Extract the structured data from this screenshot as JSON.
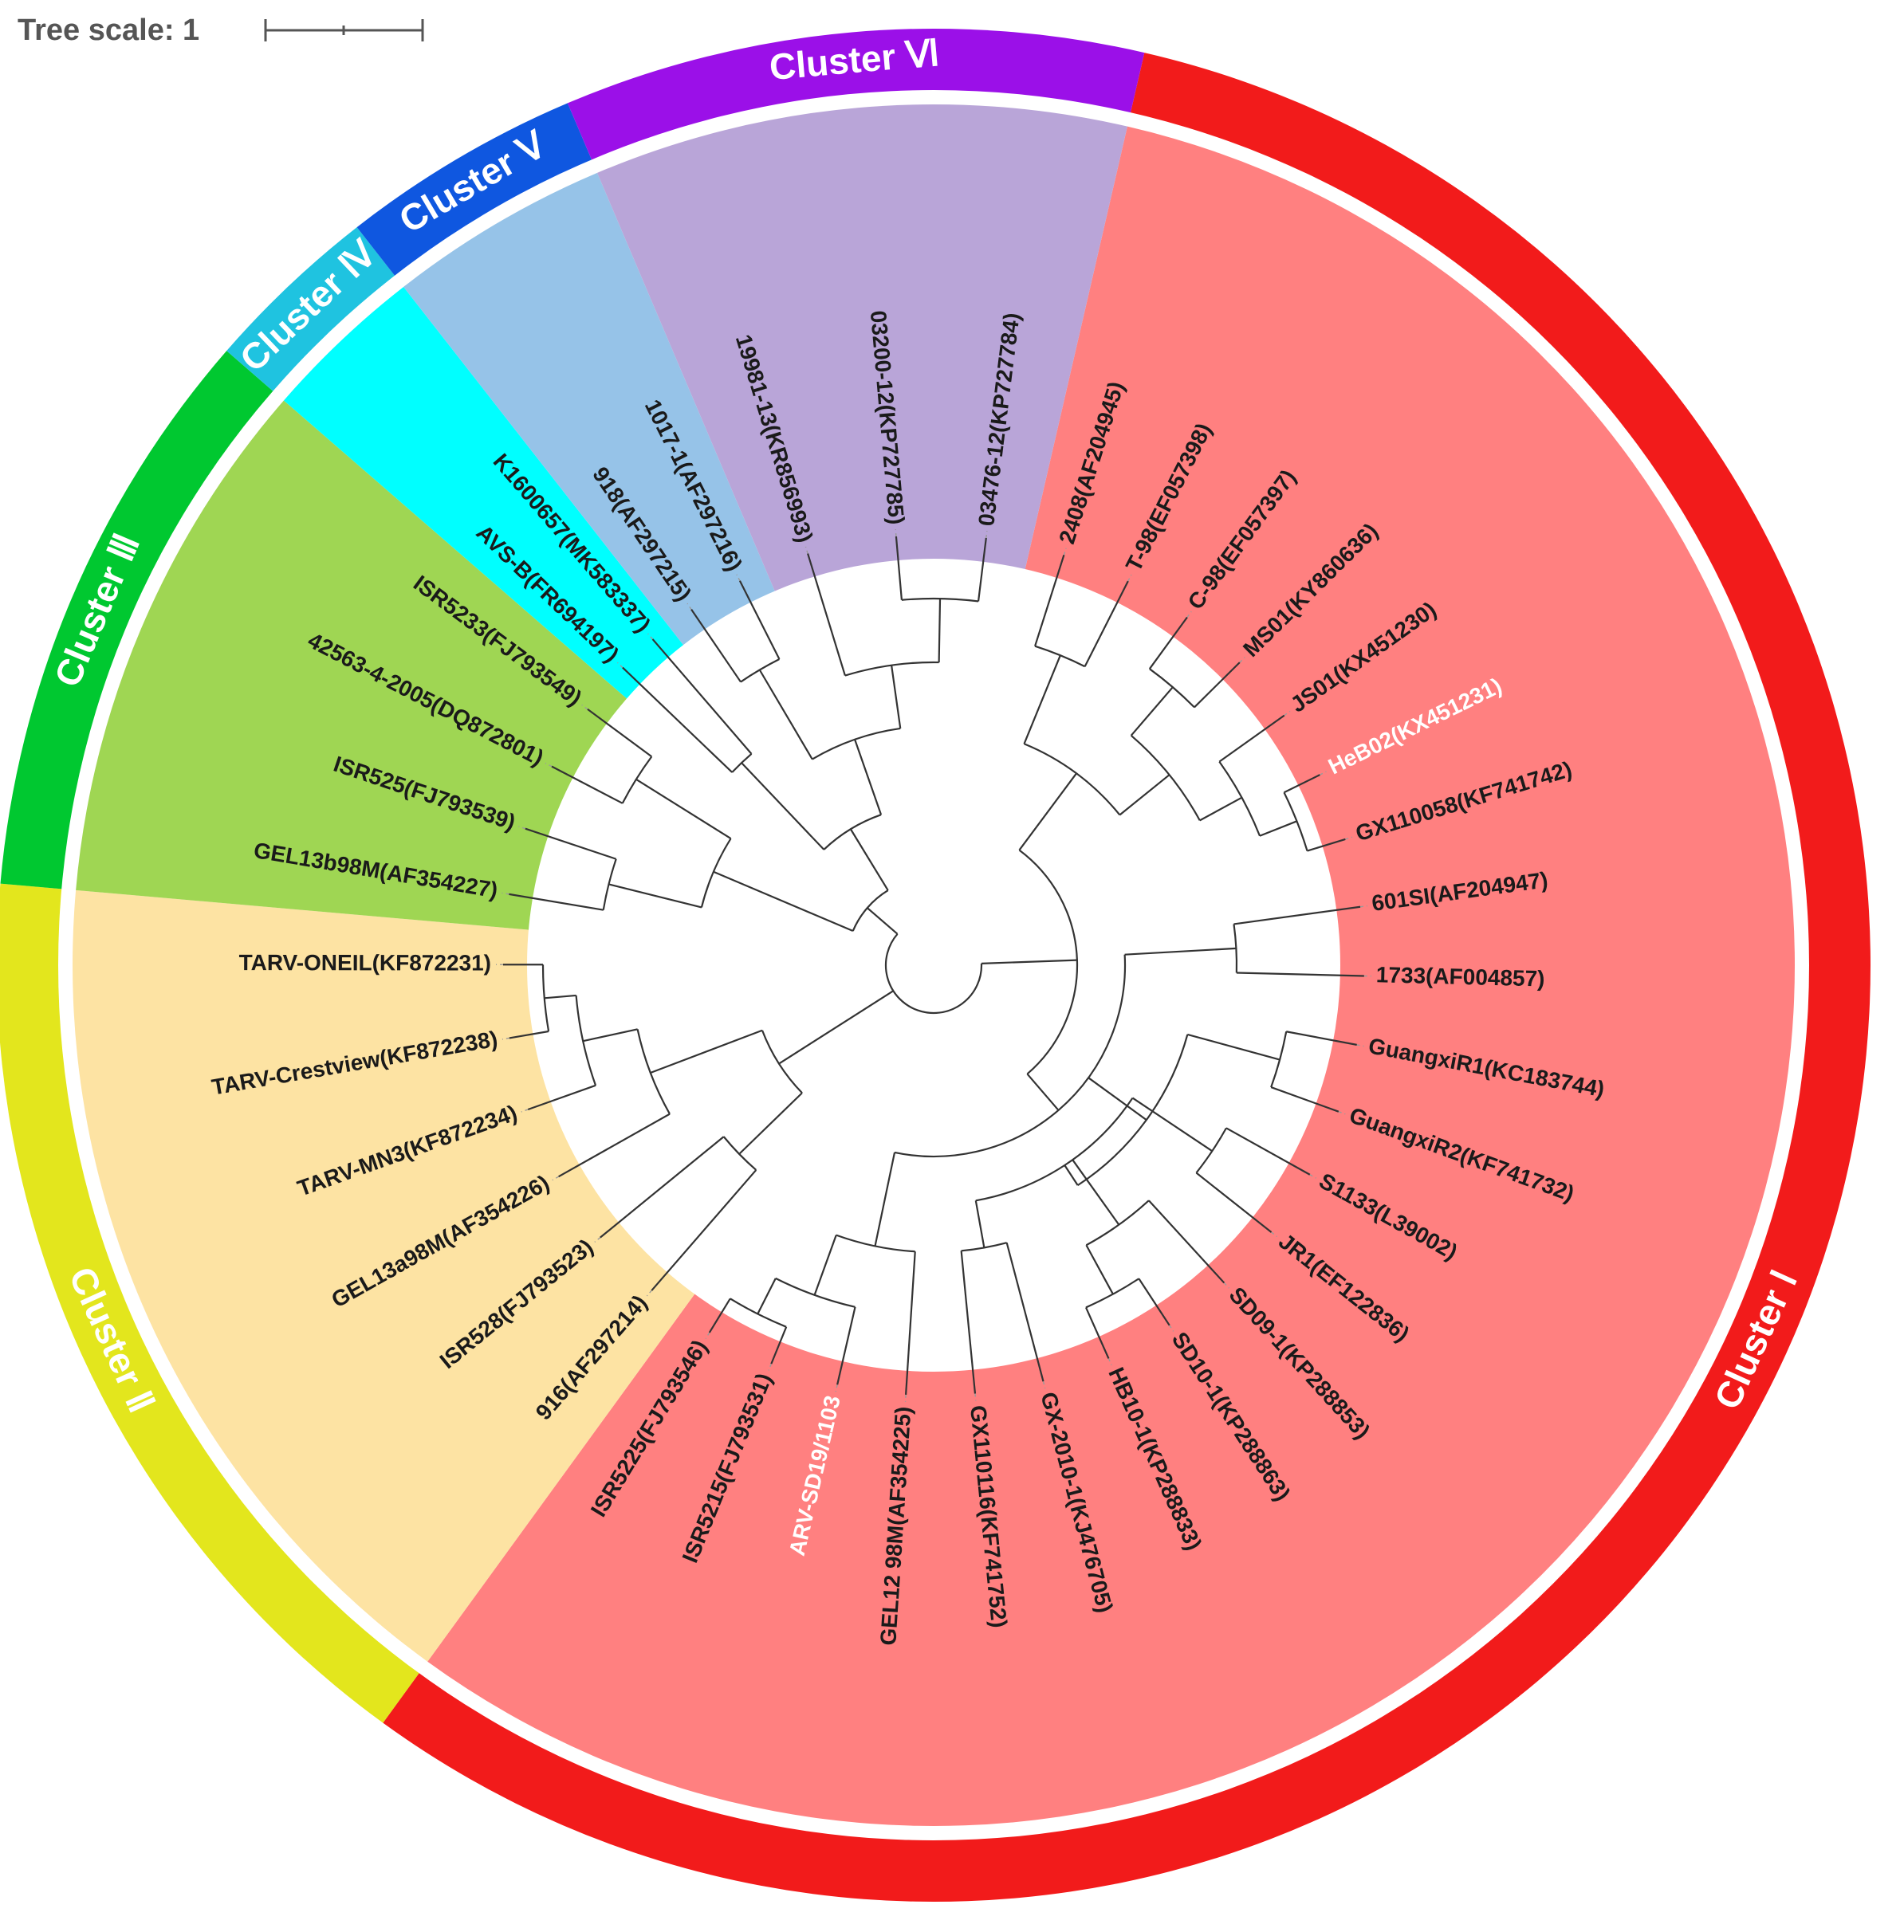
{
  "scale_bar": {
    "label": "Tree scale: 1"
  },
  "clusters": [
    {
      "id": "I",
      "label": "Cluster Ⅰ",
      "ring_color": "#f21b1b",
      "bg_color": "#ff8080",
      "start": 13,
      "end": 216
    },
    {
      "id": "II",
      "label": "Cluster Ⅱ",
      "ring_color": "#e3e61d",
      "bg_color": "#fde3a3",
      "start": 216,
      "end": 275
    },
    {
      "id": "III",
      "label": "Cluster Ⅲ",
      "ring_color": "#00c830",
      "bg_color": "#9fd653",
      "start": 275,
      "end": 311
    },
    {
      "id": "IV",
      "label": "Cluster Ⅳ",
      "ring_color": "#1fc3e0",
      "bg_color": "#00ffff",
      "start": 311,
      "end": 322
    },
    {
      "id": "V",
      "label": "Cluster Ⅴ",
      "ring_color": "#0f57e0",
      "bg_color": "#96c3e8",
      "start": 322,
      "end": 337
    },
    {
      "id": "VI",
      "label": "Cluster Ⅵ",
      "ring_color": "#9b10e8",
      "bg_color": "#b9a5d8",
      "start": 337,
      "end": 373
    }
  ],
  "leaves": [
    {
      "name": "2408(AF204945)",
      "color": "#1a1a1a",
      "cluster": "I"
    },
    {
      "name": "T-98(EF057398)",
      "color": "#1a1a1a",
      "cluster": "I"
    },
    {
      "name": "C-98(EF057397)",
      "color": "#1a1a1a",
      "cluster": "I"
    },
    {
      "name": "MS01(KY860636)",
      "color": "#1a1a1a",
      "cluster": "I"
    },
    {
      "name": "JS01(KX451230)",
      "color": "#1a1a1a",
      "cluster": "I"
    },
    {
      "name": "HeB02(KX451231)",
      "color": "#ffffff",
      "cluster": "I"
    },
    {
      "name": "GX110058(KF741742)",
      "color": "#1a1a1a",
      "cluster": "I"
    },
    {
      "name": "601SI(AF204947)",
      "color": "#1a1a1a",
      "cluster": "I"
    },
    {
      "name": "1733(AF004857)",
      "color": "#1a1a1a",
      "cluster": "I"
    },
    {
      "name": "GuangxiR1(KC183744)",
      "color": "#1a1a1a",
      "cluster": "I"
    },
    {
      "name": "GuangxiR2(KF741732)",
      "color": "#1a1a1a",
      "cluster": "I"
    },
    {
      "name": "S1133(L39002)",
      "color": "#1a1a1a",
      "cluster": "I"
    },
    {
      "name": "JR1(EF122836)",
      "color": "#1a1a1a",
      "cluster": "I"
    },
    {
      "name": "SD09-1(KP288853)",
      "color": "#1a1a1a",
      "cluster": "I"
    },
    {
      "name": "SD10-1(KP288863)",
      "color": "#1a1a1a",
      "cluster": "I"
    },
    {
      "name": "HB10-1(KP288833)",
      "color": "#1a1a1a",
      "cluster": "I"
    },
    {
      "name": "GX-2010-1(KJ476705)",
      "color": "#1a1a1a",
      "cluster": "I"
    },
    {
      "name": "GX110116(KF741752)",
      "color": "#1a1a1a",
      "cluster": "I"
    },
    {
      "name": "GEL12 98M(AF354225)",
      "color": "#1a1a1a",
      "cluster": "I"
    },
    {
      "name": "ARV-SD19/1103",
      "color": "#ffffff",
      "cluster": "I"
    },
    {
      "name": "ISR5215(FJ793531)",
      "color": "#1a1a1a",
      "cluster": "I"
    },
    {
      "name": "ISR5225(FJ793546)",
      "color": "#1a1a1a",
      "cluster": "I"
    },
    {
      "name": "916(AF297214)",
      "color": "#1a1a1a",
      "cluster": "II"
    },
    {
      "name": "ISR528(FJ793523)",
      "color": "#1a1a1a",
      "cluster": "II"
    },
    {
      "name": "GEL13a98M(AF354226)",
      "color": "#1a1a1a",
      "cluster": "II"
    },
    {
      "name": "TARV-MN3(KF872234)",
      "color": "#1a1a1a",
      "cluster": "II"
    },
    {
      "name": "TARV-Crestview(KF872238)",
      "color": "#1a1a1a",
      "cluster": "II"
    },
    {
      "name": "TARV-ONEIL(KF872231)",
      "color": "#1a1a1a",
      "cluster": "II"
    },
    {
      "name": "GEL13b98M(AF354227)",
      "color": "#1a1a1a",
      "cluster": "III"
    },
    {
      "name": "ISR525(FJ793539)",
      "color": "#1a1a1a",
      "cluster": "III"
    },
    {
      "name": "42563-4-2005(DQ872801)",
      "color": "#1a1a1a",
      "cluster": "III"
    },
    {
      "name": "ISR5233(FJ793549)",
      "color": "#1a1a1a",
      "cluster": "III"
    },
    {
      "name": "AVS-B(FR694197)",
      "color": "#1a1a1a",
      "cluster": "IV"
    },
    {
      "name": "K1600657(MK583337)",
      "color": "#1a1a1a",
      "cluster": "IV"
    },
    {
      "name": "918(AF297215)",
      "color": "#1a1a1a",
      "cluster": "V"
    },
    {
      "name": "1017-1(AF297216)",
      "color": "#1a1a1a",
      "cluster": "V"
    },
    {
      "name": "19981-13(KR856993)",
      "color": "#1a1a1a",
      "cluster": "VI"
    },
    {
      "name": "03200-12(KP727785)",
      "color": "#1a1a1a",
      "cluster": "VI"
    },
    {
      "name": "03476-12(KP727784)",
      "color": "#1a1a1a",
      "cluster": "VI"
    }
  ]
}
